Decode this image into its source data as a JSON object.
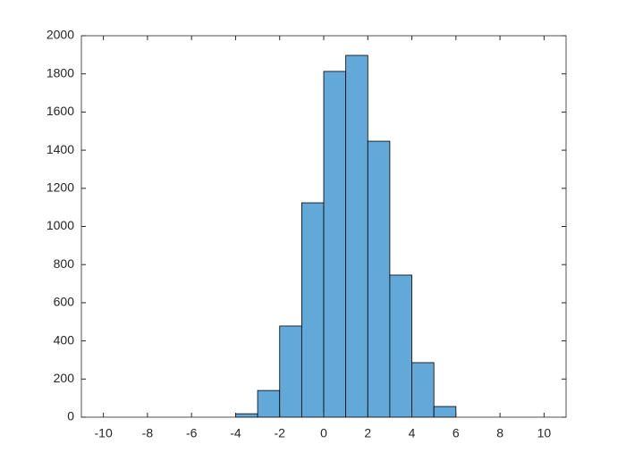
{
  "chart_data": {
    "type": "histogram",
    "bins": [
      -4,
      -3,
      -2,
      -1,
      0,
      1,
      2,
      3,
      4,
      5,
      6
    ],
    "values": [
      18,
      140,
      478,
      1124,
      1813,
      1897,
      1447,
      745,
      286,
      56
    ],
    "color": "#62a8d9",
    "xlim": [
      -11,
      11
    ],
    "xticks": [
      -10,
      -8,
      -6,
      -4,
      -2,
      0,
      2,
      4,
      6,
      8,
      10
    ],
    "ylim": [
      0,
      2000
    ],
    "yticks": [
      0,
      200,
      400,
      600,
      800,
      1000,
      1200,
      1400,
      1600,
      1800,
      2000
    ]
  }
}
